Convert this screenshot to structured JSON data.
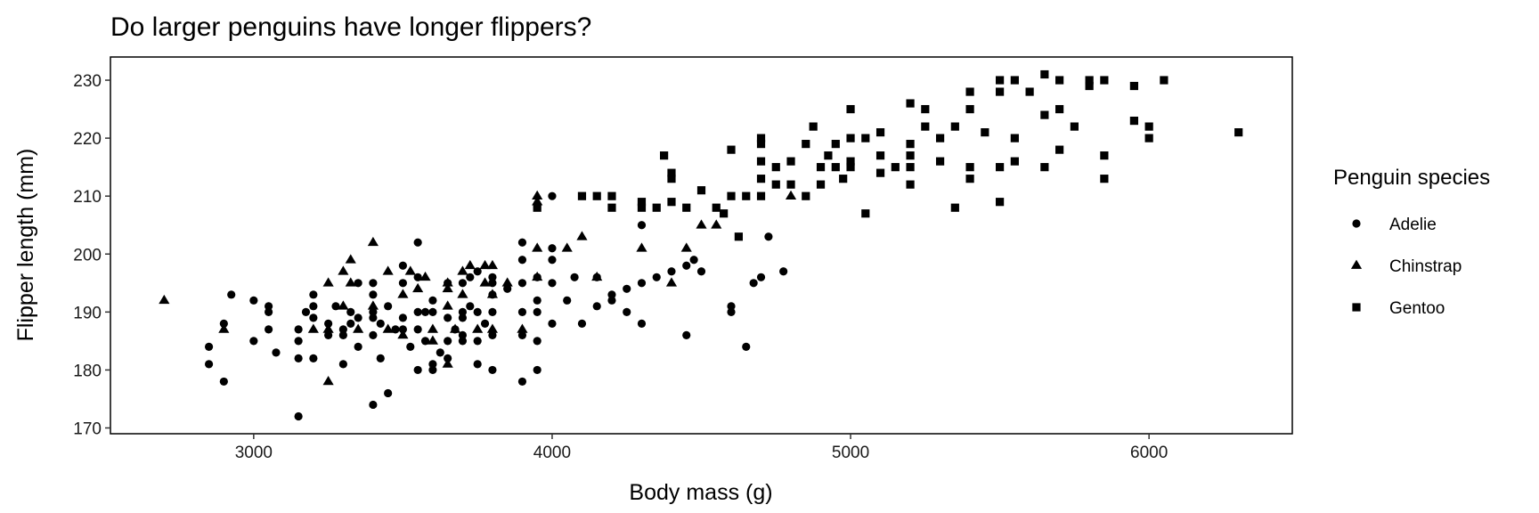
{
  "chart_data": {
    "type": "scatter",
    "title": "Do larger penguins have longer flippers?",
    "xlabel": "Body mass (g)",
    "ylabel": "Flipper length (mm)",
    "xlim": [
      2520,
      6480
    ],
    "ylim": [
      169,
      234
    ],
    "xticks": [
      3000,
      4000,
      5000,
      6000
    ],
    "yticks": [
      170,
      180,
      190,
      200,
      210,
      220,
      230
    ],
    "grid": false,
    "marker_color": "#000000",
    "legend": {
      "title": "Penguin species",
      "placement": "right"
    },
    "series": [
      {
        "name": "Adelie",
        "marker": "circle",
        "points": [
          [
            2850,
            181
          ],
          [
            2850,
            184
          ],
          [
            2900,
            178
          ],
          [
            2900,
            188
          ],
          [
            2925,
            193
          ],
          [
            3000,
            185
          ],
          [
            3000,
            192
          ],
          [
            3050,
            187
          ],
          [
            3050,
            190
          ],
          [
            3050,
            191
          ],
          [
            3075,
            183
          ],
          [
            3150,
            182
          ],
          [
            3150,
            172
          ],
          [
            3150,
            185
          ],
          [
            3150,
            187
          ],
          [
            3175,
            190
          ],
          [
            3200,
            182
          ],
          [
            3200,
            189
          ],
          [
            3200,
            191
          ],
          [
            3200,
            193
          ],
          [
            3250,
            186
          ],
          [
            3250,
            188
          ],
          [
            3275,
            191
          ],
          [
            3300,
            181
          ],
          [
            3300,
            186
          ],
          [
            3300,
            187
          ],
          [
            3325,
            190
          ],
          [
            3325,
            188
          ],
          [
            3350,
            184
          ],
          [
            3350,
            189
          ],
          [
            3350,
            195
          ],
          [
            3400,
            174
          ],
          [
            3400,
            186
          ],
          [
            3400,
            189
          ],
          [
            3400,
            190
          ],
          [
            3400,
            193
          ],
          [
            3400,
            195
          ],
          [
            3425,
            182
          ],
          [
            3425,
            188
          ],
          [
            3450,
            176
          ],
          [
            3450,
            191
          ],
          [
            3475,
            187
          ],
          [
            3500,
            187
          ],
          [
            3500,
            189
          ],
          [
            3500,
            195
          ],
          [
            3500,
            198
          ],
          [
            3525,
            184
          ],
          [
            3550,
            180
          ],
          [
            3550,
            187
          ],
          [
            3550,
            190
          ],
          [
            3550,
            196
          ],
          [
            3550,
            202
          ],
          [
            3575,
            185
          ],
          [
            3575,
            190
          ],
          [
            3600,
            180
          ],
          [
            3600,
            181
          ],
          [
            3600,
            190
          ],
          [
            3600,
            192
          ],
          [
            3625,
            183
          ],
          [
            3650,
            182
          ],
          [
            3650,
            185
          ],
          [
            3650,
            189
          ],
          [
            3650,
            195
          ],
          [
            3675,
            187
          ],
          [
            3700,
            185
          ],
          [
            3700,
            186
          ],
          [
            3700,
            189
          ],
          [
            3700,
            190
          ],
          [
            3700,
            195
          ],
          [
            3725,
            191
          ],
          [
            3725,
            196
          ],
          [
            3750,
            181
          ],
          [
            3750,
            185
          ],
          [
            3750,
            190
          ],
          [
            3750,
            197
          ],
          [
            3775,
            188
          ],
          [
            3800,
            180
          ],
          [
            3800,
            186
          ],
          [
            3800,
            190
          ],
          [
            3800,
            193
          ],
          [
            3800,
            195
          ],
          [
            3800,
            196
          ],
          [
            3850,
            194
          ],
          [
            3900,
            178
          ],
          [
            3900,
            186
          ],
          [
            3900,
            190
          ],
          [
            3900,
            195
          ],
          [
            3900,
            199
          ],
          [
            3900,
            202
          ],
          [
            3950,
            180
          ],
          [
            3950,
            185
          ],
          [
            3950,
            190
          ],
          [
            3950,
            192
          ],
          [
            3950,
            196
          ],
          [
            4000,
            188
          ],
          [
            4000,
            195
          ],
          [
            4000,
            199
          ],
          [
            4000,
            201
          ],
          [
            4000,
            210
          ],
          [
            4050,
            192
          ],
          [
            4075,
            196
          ],
          [
            4100,
            188
          ],
          [
            4150,
            191
          ],
          [
            4150,
            196
          ],
          [
            4200,
            192
          ],
          [
            4200,
            193
          ],
          [
            4250,
            190
          ],
          [
            4250,
            194
          ],
          [
            4300,
            188
          ],
          [
            4300,
            195
          ],
          [
            4300,
            205
          ],
          [
            4350,
            196
          ],
          [
            4400,
            197
          ],
          [
            4450,
            186
          ],
          [
            4450,
            198
          ],
          [
            4475,
            199
          ],
          [
            4500,
            197
          ],
          [
            4600,
            190
          ],
          [
            4600,
            191
          ],
          [
            4650,
            184
          ],
          [
            4675,
            195
          ],
          [
            4700,
            196
          ],
          [
            4725,
            203
          ],
          [
            4775,
            197
          ]
        ]
      },
      {
        "name": "Chinstrap",
        "marker": "triangle",
        "points": [
          [
            2700,
            192
          ],
          [
            2900,
            187
          ],
          [
            3200,
            187
          ],
          [
            3250,
            178
          ],
          [
            3250,
            187
          ],
          [
            3250,
            195
          ],
          [
            3300,
            191
          ],
          [
            3300,
            197
          ],
          [
            3325,
            195
          ],
          [
            3325,
            199
          ],
          [
            3350,
            187
          ],
          [
            3400,
            191
          ],
          [
            3400,
            202
          ],
          [
            3450,
            187
          ],
          [
            3450,
            197
          ],
          [
            3500,
            186
          ],
          [
            3500,
            193
          ],
          [
            3525,
            197
          ],
          [
            3550,
            194
          ],
          [
            3575,
            196
          ],
          [
            3600,
            185
          ],
          [
            3600,
            187
          ],
          [
            3650,
            181
          ],
          [
            3650,
            191
          ],
          [
            3650,
            194
          ],
          [
            3650,
            195
          ],
          [
            3675,
            187
          ],
          [
            3700,
            193
          ],
          [
            3700,
            197
          ],
          [
            3725,
            198
          ],
          [
            3750,
            187
          ],
          [
            3775,
            195
          ],
          [
            3775,
            198
          ],
          [
            3800,
            187
          ],
          [
            3800,
            193
          ],
          [
            3800,
            198
          ],
          [
            3850,
            195
          ],
          [
            3900,
            187
          ],
          [
            3950,
            196
          ],
          [
            3950,
            201
          ],
          [
            3950,
            209
          ],
          [
            3950,
            210
          ],
          [
            4050,
            201
          ],
          [
            4100,
            203
          ],
          [
            4150,
            196
          ],
          [
            4300,
            201
          ],
          [
            4400,
            195
          ],
          [
            4450,
            201
          ],
          [
            4500,
            205
          ],
          [
            4550,
            205
          ],
          [
            4800,
            210
          ]
        ]
      },
      {
        "name": "Gentoo",
        "marker": "square",
        "points": [
          [
            3950,
            208
          ],
          [
            4100,
            210
          ],
          [
            4150,
            210
          ],
          [
            4200,
            208
          ],
          [
            4200,
            210
          ],
          [
            4300,
            208
          ],
          [
            4300,
            209
          ],
          [
            4350,
            208
          ],
          [
            4375,
            217
          ],
          [
            4400,
            209
          ],
          [
            4400,
            213
          ],
          [
            4400,
            214
          ],
          [
            4450,
            208
          ],
          [
            4500,
            211
          ],
          [
            4550,
            208
          ],
          [
            4575,
            207
          ],
          [
            4600,
            210
          ],
          [
            4600,
            218
          ],
          [
            4625,
            203
          ],
          [
            4650,
            210
          ],
          [
            4700,
            210
          ],
          [
            4700,
            213
          ],
          [
            4700,
            216
          ],
          [
            4700,
            219
          ],
          [
            4700,
            220
          ],
          [
            4750,
            212
          ],
          [
            4750,
            215
          ],
          [
            4800,
            212
          ],
          [
            4800,
            216
          ],
          [
            4850,
            210
          ],
          [
            4850,
            219
          ],
          [
            4875,
            222
          ],
          [
            4900,
            212
          ],
          [
            4900,
            215
          ],
          [
            4925,
            217
          ],
          [
            4950,
            215
          ],
          [
            4950,
            219
          ],
          [
            4975,
            213
          ],
          [
            5000,
            215
          ],
          [
            5000,
            216
          ],
          [
            5000,
            220
          ],
          [
            5000,
            225
          ],
          [
            5050,
            207
          ],
          [
            5050,
            220
          ],
          [
            5100,
            214
          ],
          [
            5100,
            217
          ],
          [
            5100,
            221
          ],
          [
            5150,
            215
          ],
          [
            5200,
            212
          ],
          [
            5200,
            215
          ],
          [
            5200,
            217
          ],
          [
            5200,
            219
          ],
          [
            5200,
            226
          ],
          [
            5250,
            222
          ],
          [
            5250,
            225
          ],
          [
            5300,
            216
          ],
          [
            5300,
            220
          ],
          [
            5350,
            208
          ],
          [
            5350,
            222
          ],
          [
            5400,
            213
          ],
          [
            5400,
            215
          ],
          [
            5400,
            225
          ],
          [
            5400,
            228
          ],
          [
            5450,
            221
          ],
          [
            5500,
            209
          ],
          [
            5500,
            215
          ],
          [
            5500,
            228
          ],
          [
            5500,
            230
          ],
          [
            5550,
            216
          ],
          [
            5550,
            220
          ],
          [
            5550,
            230
          ],
          [
            5600,
            228
          ],
          [
            5650,
            215
          ],
          [
            5650,
            224
          ],
          [
            5650,
            231
          ],
          [
            5700,
            218
          ],
          [
            5700,
            225
          ],
          [
            5700,
            230
          ],
          [
            5750,
            222
          ],
          [
            5800,
            229
          ],
          [
            5800,
            230
          ],
          [
            5850,
            213
          ],
          [
            5850,
            217
          ],
          [
            5850,
            230
          ],
          [
            5950,
            223
          ],
          [
            5950,
            229
          ],
          [
            6000,
            220
          ],
          [
            6000,
            222
          ],
          [
            6050,
            230
          ],
          [
            6300,
            221
          ]
        ]
      }
    ]
  }
}
